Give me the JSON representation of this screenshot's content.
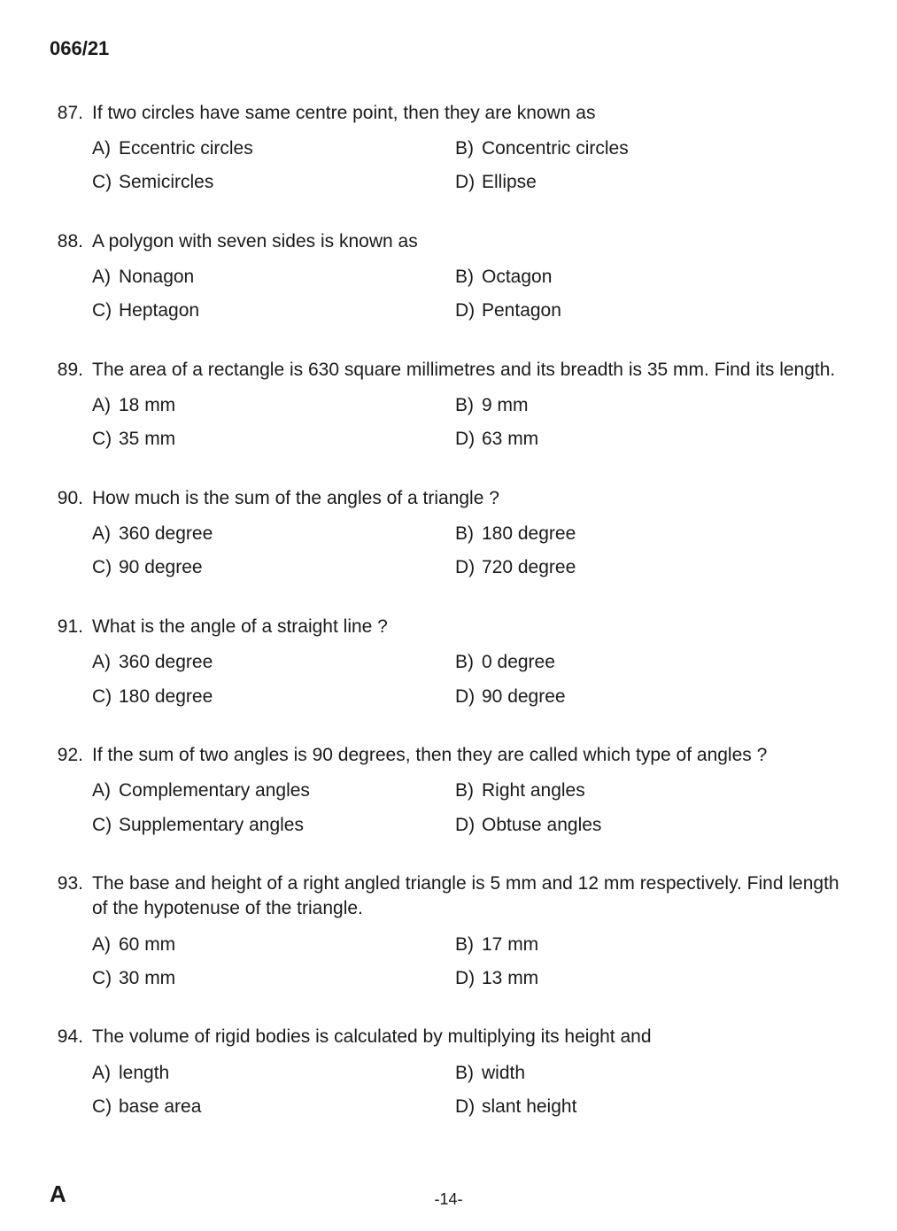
{
  "paper_code": "066/21",
  "series_letter": "A",
  "page_number": "-14-",
  "questions": [
    {
      "num": "87.",
      "text": "If two circles have same centre point, then they are known as",
      "options": {
        "A": "Eccentric circles",
        "B": "Concentric circles",
        "C": "Semicircles",
        "D": "Ellipse"
      }
    },
    {
      "num": "88.",
      "text": "A polygon with seven sides is known as",
      "options": {
        "A": "Nonagon",
        "B": "Octagon",
        "C": "Heptagon",
        "D": "Pentagon"
      }
    },
    {
      "num": "89.",
      "text": "The area of a rectangle is 630 square millimetres and its breadth is 35 mm. Find its length.",
      "options": {
        "A": "18 mm",
        "B": "9 mm",
        "C": "35 mm",
        "D": "63 mm"
      }
    },
    {
      "num": "90.",
      "text": "How much is the sum of the angles of a triangle ?",
      "options": {
        "A": "360 degree",
        "B": "180 degree",
        "C": "90 degree",
        "D": "720 degree"
      }
    },
    {
      "num": "91.",
      "text": "What is the angle of a straight line ?",
      "options": {
        "A": "360 degree",
        "B": "0 degree",
        "C": "180 degree",
        "D": "90 degree"
      }
    },
    {
      "num": "92.",
      "text": "If the sum of two angles is 90 degrees, then they are called which type of angles ?",
      "options": {
        "A": "Complementary angles",
        "B": "Right angles",
        "C": "Supplementary angles",
        "D": "Obtuse angles"
      }
    },
    {
      "num": "93.",
      "text": "The base and height of a right angled  triangle is 5 mm and 12 mm respectively. Find length of the hypotenuse of the triangle.",
      "options": {
        "A": "60 mm",
        "B": "17 mm",
        "C": "30 mm",
        "D": "13 mm"
      }
    },
    {
      "num": "94.",
      "text": "The volume of rigid bodies is calculated by multiplying its height and",
      "options": {
        "A": "length",
        "B": "width",
        "C": "base area",
        "D": "slant height"
      }
    }
  ],
  "option_letters": {
    "A": "A)",
    "B": "B)",
    "C": "C)",
    "D": "D)"
  }
}
